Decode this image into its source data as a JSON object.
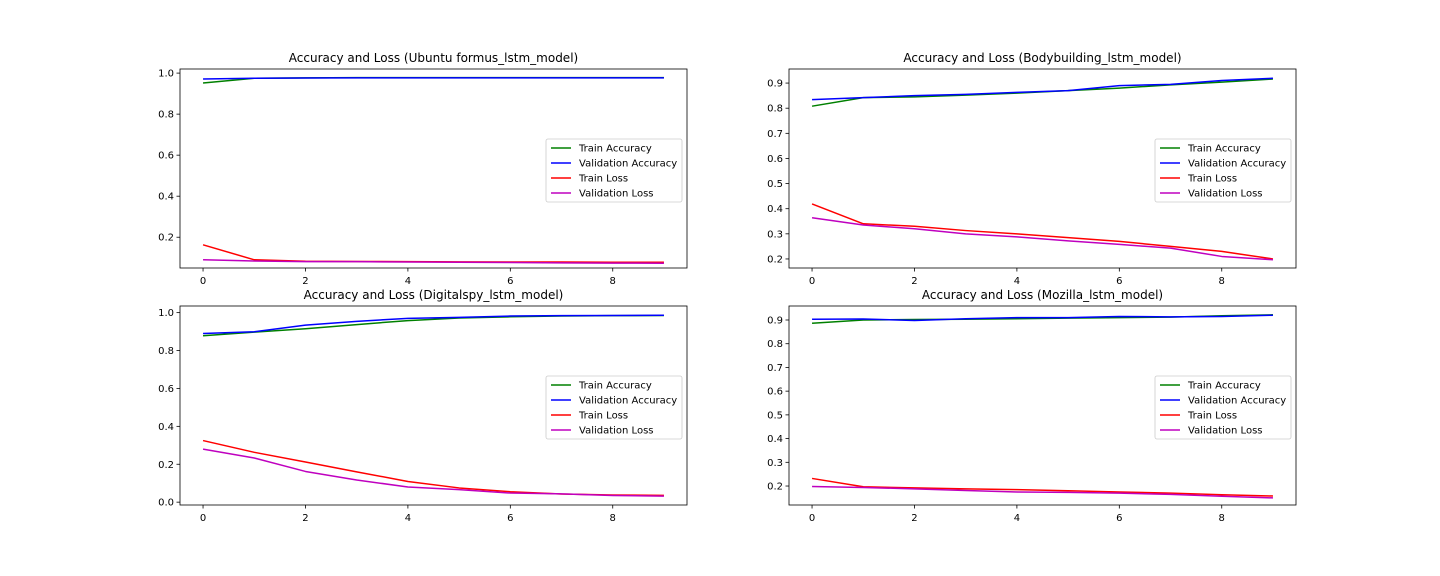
{
  "chart_data": [
    {
      "type": "line",
      "title": "Accuracy and Loss (Ubuntu formus_lstm_model)",
      "x": [
        0,
        1,
        2,
        3,
        4,
        5,
        6,
        7,
        8,
        9
      ],
      "xlim": [
        -0.45,
        9.45
      ],
      "ylim": [
        0.05,
        1.02
      ],
      "xticks": [
        0,
        2,
        4,
        6,
        8
      ],
      "yticks": [
        0.2,
        0.4,
        0.6,
        0.8,
        1.0
      ],
      "xtick_labels": [
        "0",
        "2",
        "4",
        "6",
        "8"
      ],
      "ytick_labels": [
        "0.2",
        "0.4",
        "0.6",
        "0.8",
        "1.0"
      ],
      "legend_position": "center-right",
      "series": [
        {
          "name": "Train Accuracy",
          "color": "#008000",
          "values": [
            0.952,
            0.975,
            0.977,
            0.978,
            0.978,
            0.978,
            0.978,
            0.978,
            0.978,
            0.978
          ]
        },
        {
          "name": "Validation Accuracy",
          "color": "#0000ff",
          "values": [
            0.971,
            0.975,
            0.976,
            0.977,
            0.977,
            0.977,
            0.977,
            0.977,
            0.977,
            0.977
          ]
        },
        {
          "name": "Train Loss",
          "color": "#ff0000",
          "values": [
            0.163,
            0.09,
            0.083,
            0.082,
            0.081,
            0.08,
            0.079,
            0.079,
            0.078,
            0.078
          ]
        },
        {
          "name": "Validation Loss",
          "color": "#bf00bf",
          "values": [
            0.09,
            0.084,
            0.081,
            0.081,
            0.079,
            0.078,
            0.077,
            0.075,
            0.074,
            0.073
          ]
        }
      ]
    },
    {
      "type": "line",
      "title": "Accuracy and Loss (Bodybuilding_lstm_model)",
      "x": [
        0,
        1,
        2,
        3,
        4,
        5,
        6,
        7,
        8,
        9
      ],
      "xlim": [
        -0.45,
        9.45
      ],
      "ylim": [
        0.164,
        0.956
      ],
      "xticks": [
        0,
        2,
        4,
        6,
        8
      ],
      "yticks": [
        0.2,
        0.3,
        0.4,
        0.5,
        0.6,
        0.7,
        0.8,
        0.9
      ],
      "xtick_labels": [
        "0",
        "2",
        "4",
        "6",
        "8"
      ],
      "ytick_labels": [
        "0.2",
        "0.3",
        "0.4",
        "0.5",
        "0.6",
        "0.7",
        "0.8",
        "0.9"
      ],
      "legend_position": "center-right",
      "series": [
        {
          "name": "Train Accuracy",
          "color": "#008000",
          "values": [
            0.808,
            0.842,
            0.845,
            0.852,
            0.86,
            0.87,
            0.88,
            0.893,
            0.904,
            0.916
          ]
        },
        {
          "name": "Validation Accuracy",
          "color": "#0000ff",
          "values": [
            0.834,
            0.842,
            0.85,
            0.855,
            0.863,
            0.87,
            0.89,
            0.895,
            0.91,
            0.919
          ]
        },
        {
          "name": "Train Loss",
          "color": "#ff0000",
          "values": [
            0.419,
            0.34,
            0.33,
            0.313,
            0.3,
            0.285,
            0.27,
            0.25,
            0.23,
            0.2
          ]
        },
        {
          "name": "Validation Loss",
          "color": "#bf00bf",
          "values": [
            0.364,
            0.335,
            0.32,
            0.3,
            0.288,
            0.272,
            0.258,
            0.243,
            0.21,
            0.197
          ]
        }
      ]
    },
    {
      "type": "line",
      "title": "Accuracy and Loss (Digitalspy_lstm_model)",
      "x": [
        0,
        1,
        2,
        3,
        4,
        5,
        6,
        7,
        8,
        9
      ],
      "xlim": [
        -0.45,
        9.45
      ],
      "ylim": [
        -0.015,
        1.035
      ],
      "xticks": [
        0,
        2,
        4,
        6,
        8
      ],
      "yticks": [
        0.0,
        0.2,
        0.4,
        0.6,
        0.8,
        1.0
      ],
      "xtick_labels": [
        "0",
        "2",
        "4",
        "6",
        "8"
      ],
      "ytick_labels": [
        "0.0",
        "0.2",
        "0.4",
        "0.6",
        "0.8",
        "1.0"
      ],
      "legend_position": "center-right",
      "series": [
        {
          "name": "Train Accuracy",
          "color": "#008000",
          "values": [
            0.878,
            0.897,
            0.915,
            0.937,
            0.958,
            0.972,
            0.978,
            0.982,
            0.984,
            0.985
          ]
        },
        {
          "name": "Validation Accuracy",
          "color": "#0000ff",
          "values": [
            0.89,
            0.899,
            0.934,
            0.954,
            0.97,
            0.975,
            0.982,
            0.984,
            0.985,
            0.986
          ]
        },
        {
          "name": "Train Loss",
          "color": "#ff0000",
          "values": [
            0.325,
            0.263,
            0.212,
            0.16,
            0.109,
            0.075,
            0.055,
            0.043,
            0.038,
            0.036
          ]
        },
        {
          "name": "Validation Loss",
          "color": "#bf00bf",
          "values": [
            0.28,
            0.233,
            0.162,
            0.117,
            0.08,
            0.066,
            0.048,
            0.044,
            0.035,
            0.032
          ]
        }
      ]
    },
    {
      "type": "line",
      "title": "Accuracy and Loss (Mozilla_lstm_model)",
      "x": [
        0,
        1,
        2,
        3,
        4,
        5,
        6,
        7,
        8,
        9
      ],
      "xlim": [
        -0.45,
        9.45
      ],
      "ylim": [
        0.12,
        0.959
      ],
      "xticks": [
        0,
        2,
        4,
        6,
        8
      ],
      "yticks": [
        0.2,
        0.3,
        0.4,
        0.5,
        0.6,
        0.7,
        0.8,
        0.9
      ],
      "xtick_labels": [
        "0",
        "2",
        "4",
        "6",
        "8"
      ],
      "ytick_labels": [
        "0.2",
        "0.3",
        "0.4",
        "0.5",
        "0.6",
        "0.7",
        "0.8",
        "0.9"
      ],
      "legend_position": "center-right",
      "series": [
        {
          "name": "Train Accuracy",
          "color": "#008000",
          "values": [
            0.886,
            0.9,
            0.902,
            0.903,
            0.905,
            0.908,
            0.91,
            0.912,
            0.918,
            0.922
          ]
        },
        {
          "name": "Validation Accuracy",
          "color": "#0000ff",
          "values": [
            0.903,
            0.904,
            0.898,
            0.905,
            0.91,
            0.91,
            0.915,
            0.913,
            0.915,
            0.92
          ]
        },
        {
          "name": "Train Loss",
          "color": "#ff0000",
          "values": [
            0.232,
            0.197,
            0.192,
            0.188,
            0.185,
            0.18,
            0.175,
            0.17,
            0.163,
            0.158
          ]
        },
        {
          "name": "Validation Loss",
          "color": "#bf00bf",
          "values": [
            0.198,
            0.194,
            0.188,
            0.181,
            0.175,
            0.173,
            0.17,
            0.165,
            0.157,
            0.15
          ]
        }
      ]
    }
  ]
}
